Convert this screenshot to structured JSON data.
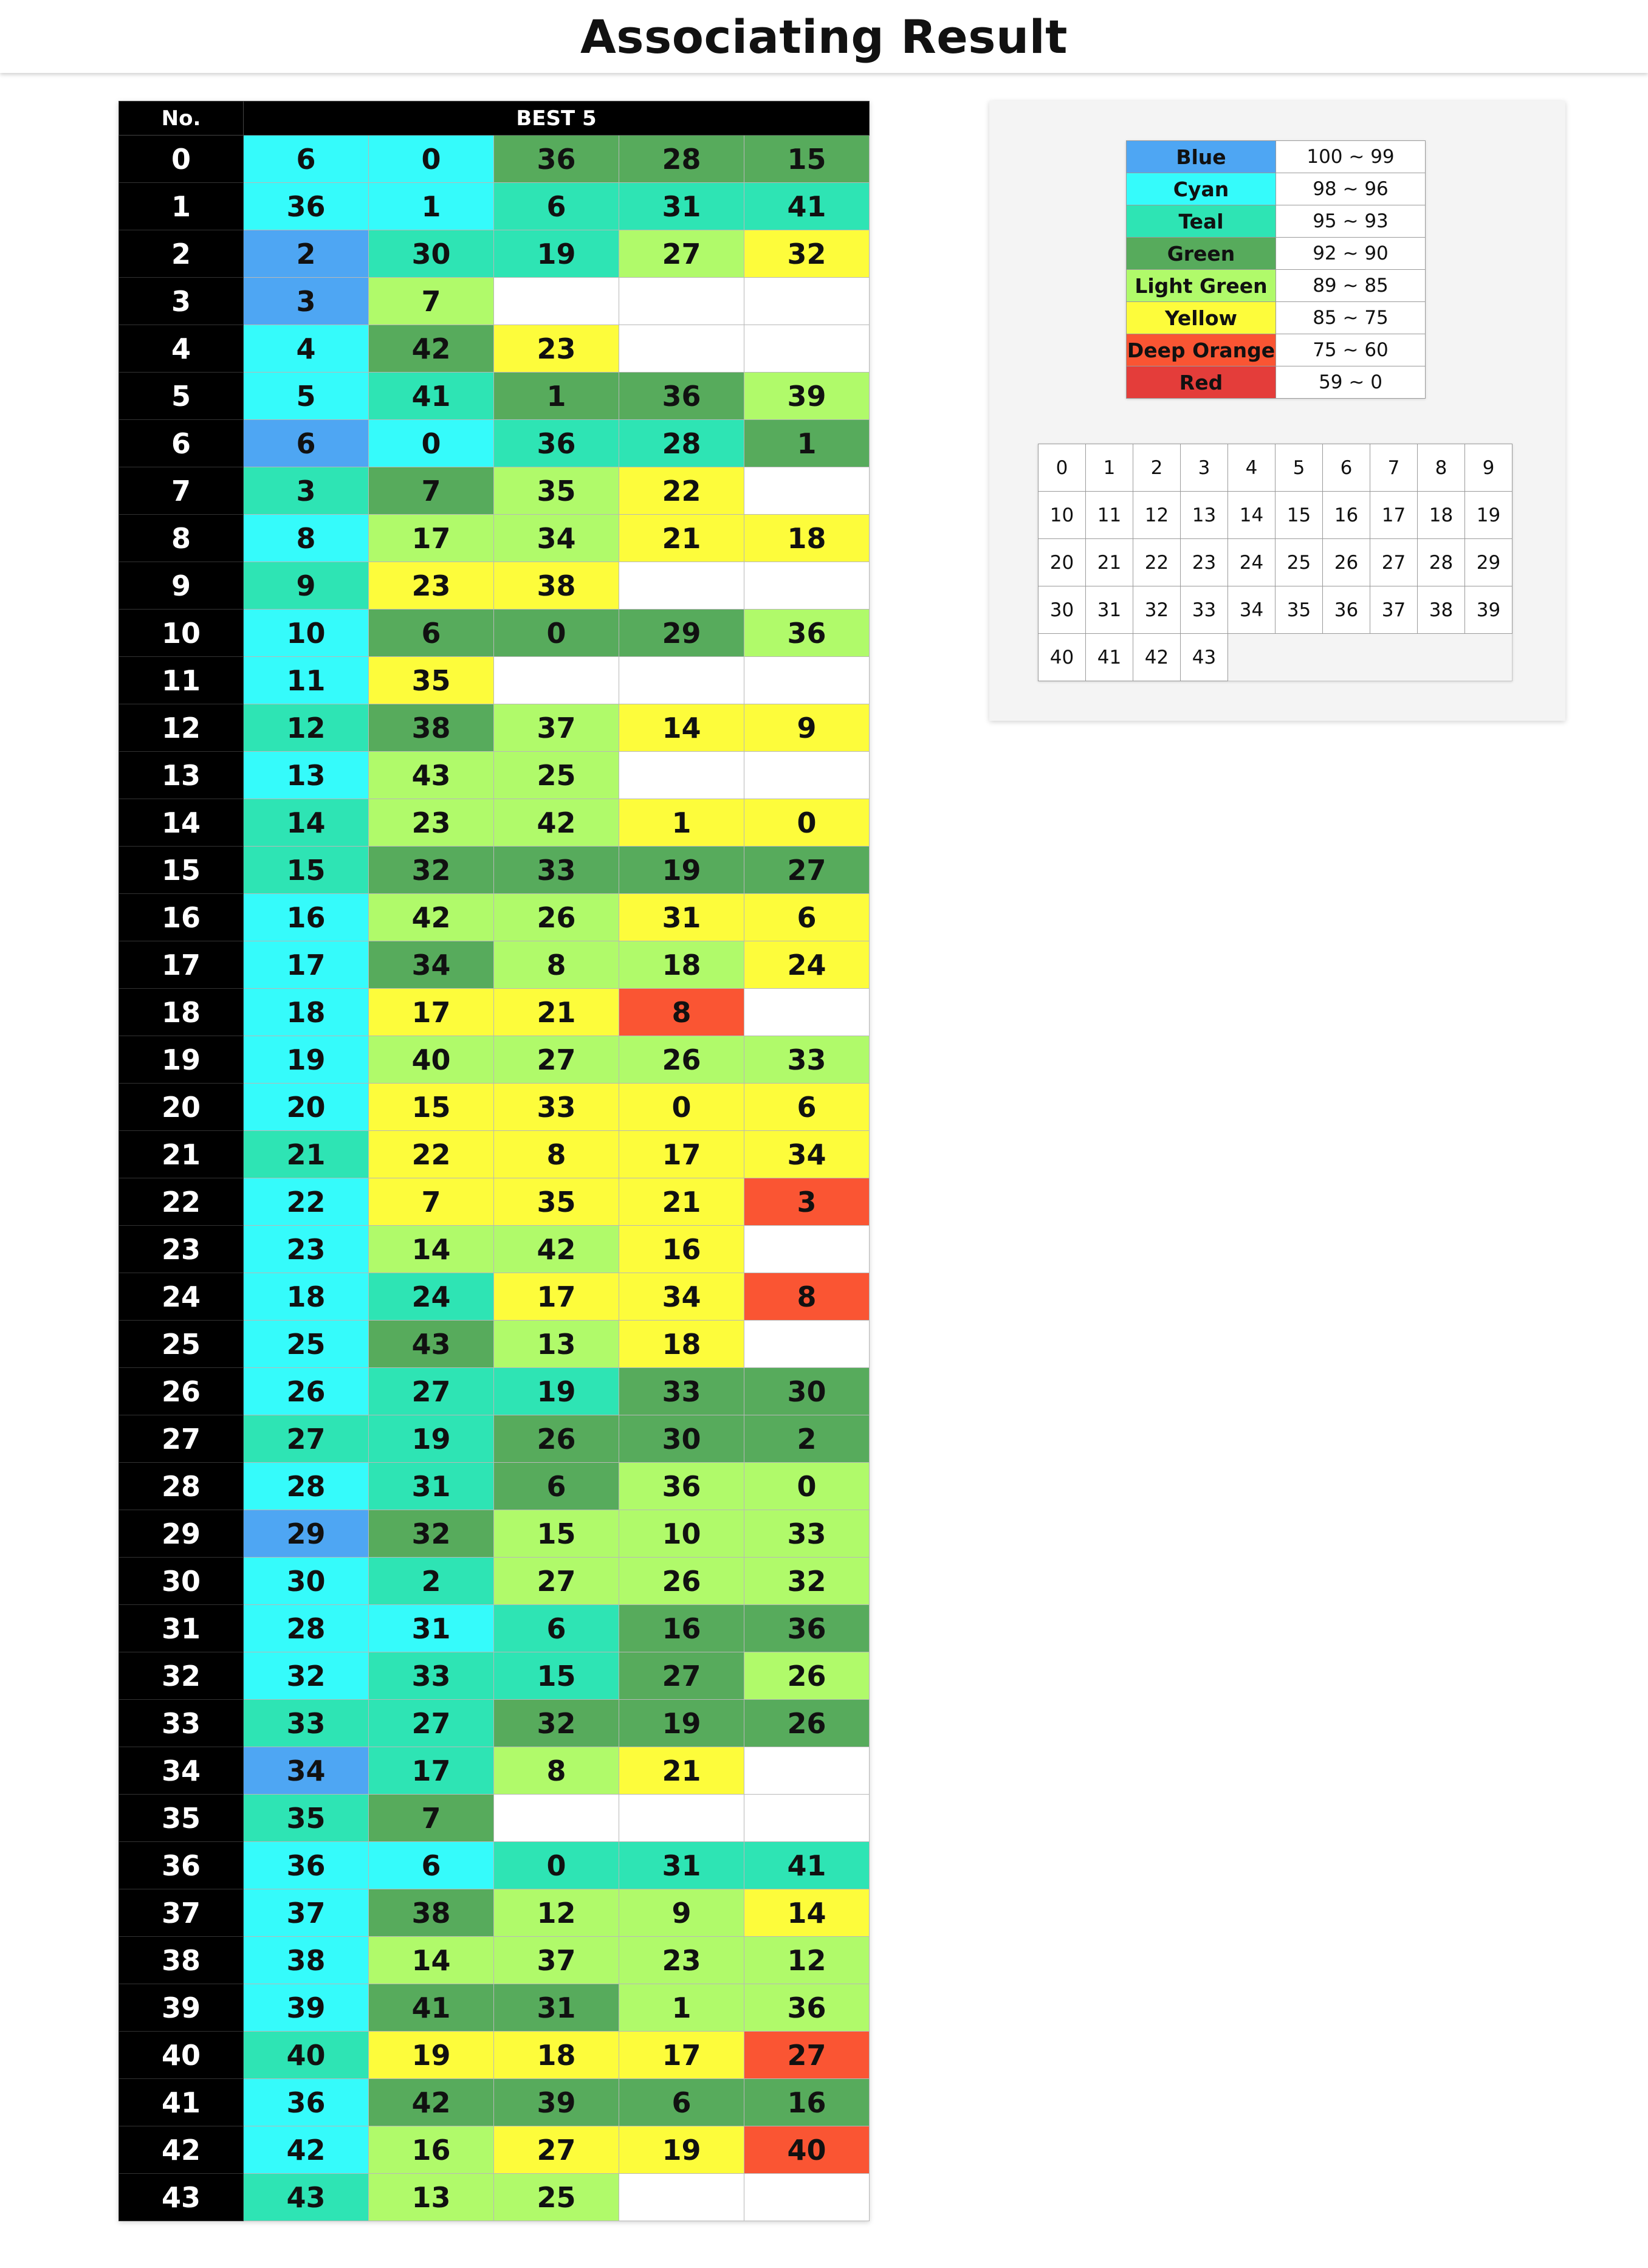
{
  "title": "Associating Result",
  "table_header": {
    "no_label": "No.",
    "best_label": "BEST 5"
  },
  "palette": {
    "blue": "#4ea6f3",
    "cyan": "#35fbfb",
    "teal": "#2ee4b4",
    "green": "#57ab5c",
    "lightgreen": "#b0fa6a",
    "yellow": "#fdfc3b",
    "deeporange": "#fa5533",
    "red": "#e43d3a"
  },
  "rows": [
    {
      "no": "0",
      "cells": [
        {
          "v": "6",
          "c": "cyan"
        },
        {
          "v": "0",
          "c": "cyan"
        },
        {
          "v": "36",
          "c": "green"
        },
        {
          "v": "28",
          "c": "green"
        },
        {
          "v": "15",
          "c": "green"
        }
      ]
    },
    {
      "no": "1",
      "cells": [
        {
          "v": "36",
          "c": "cyan"
        },
        {
          "v": "1",
          "c": "cyan"
        },
        {
          "v": "6",
          "c": "teal"
        },
        {
          "v": "31",
          "c": "teal"
        },
        {
          "v": "41",
          "c": "teal"
        }
      ]
    },
    {
      "no": "2",
      "cells": [
        {
          "v": "2",
          "c": "blue"
        },
        {
          "v": "30",
          "c": "teal"
        },
        {
          "v": "19",
          "c": "teal"
        },
        {
          "v": "27",
          "c": "lightgreen"
        },
        {
          "v": "32",
          "c": "yellow"
        }
      ]
    },
    {
      "no": "3",
      "cells": [
        {
          "v": "3",
          "c": "blue"
        },
        {
          "v": "7",
          "c": "lightgreen"
        }
      ]
    },
    {
      "no": "4",
      "cells": [
        {
          "v": "4",
          "c": "cyan"
        },
        {
          "v": "42",
          "c": "green"
        },
        {
          "v": "23",
          "c": "yellow"
        }
      ]
    },
    {
      "no": "5",
      "cells": [
        {
          "v": "5",
          "c": "cyan"
        },
        {
          "v": "41",
          "c": "teal"
        },
        {
          "v": "1",
          "c": "green"
        },
        {
          "v": "36",
          "c": "green"
        },
        {
          "v": "39",
          "c": "lightgreen"
        }
      ]
    },
    {
      "no": "6",
      "cells": [
        {
          "v": "6",
          "c": "blue"
        },
        {
          "v": "0",
          "c": "cyan"
        },
        {
          "v": "36",
          "c": "teal"
        },
        {
          "v": "28",
          "c": "teal"
        },
        {
          "v": "1",
          "c": "green"
        }
      ]
    },
    {
      "no": "7",
      "cells": [
        {
          "v": "3",
          "c": "teal"
        },
        {
          "v": "7",
          "c": "green"
        },
        {
          "v": "35",
          "c": "lightgreen"
        },
        {
          "v": "22",
          "c": "yellow"
        }
      ]
    },
    {
      "no": "8",
      "cells": [
        {
          "v": "8",
          "c": "cyan"
        },
        {
          "v": "17",
          "c": "lightgreen"
        },
        {
          "v": "34",
          "c": "lightgreen"
        },
        {
          "v": "21",
          "c": "yellow"
        },
        {
          "v": "18",
          "c": "yellow"
        }
      ]
    },
    {
      "no": "9",
      "cells": [
        {
          "v": "9",
          "c": "teal"
        },
        {
          "v": "23",
          "c": "yellow"
        },
        {
          "v": "38",
          "c": "yellow"
        }
      ]
    },
    {
      "no": "10",
      "cells": [
        {
          "v": "10",
          "c": "cyan"
        },
        {
          "v": "6",
          "c": "green"
        },
        {
          "v": "0",
          "c": "green"
        },
        {
          "v": "29",
          "c": "green"
        },
        {
          "v": "36",
          "c": "lightgreen"
        }
      ]
    },
    {
      "no": "11",
      "cells": [
        {
          "v": "11",
          "c": "cyan"
        },
        {
          "v": "35",
          "c": "yellow"
        }
      ]
    },
    {
      "no": "12",
      "cells": [
        {
          "v": "12",
          "c": "teal"
        },
        {
          "v": "38",
          "c": "green"
        },
        {
          "v": "37",
          "c": "lightgreen"
        },
        {
          "v": "14",
          "c": "yellow"
        },
        {
          "v": "9",
          "c": "yellow"
        }
      ]
    },
    {
      "no": "13",
      "cells": [
        {
          "v": "13",
          "c": "cyan"
        },
        {
          "v": "43",
          "c": "lightgreen"
        },
        {
          "v": "25",
          "c": "lightgreen"
        }
      ]
    },
    {
      "no": "14",
      "cells": [
        {
          "v": "14",
          "c": "teal"
        },
        {
          "v": "23",
          "c": "lightgreen"
        },
        {
          "v": "42",
          "c": "lightgreen"
        },
        {
          "v": "1",
          "c": "yellow"
        },
        {
          "v": "0",
          "c": "yellow"
        }
      ]
    },
    {
      "no": "15",
      "cells": [
        {
          "v": "15",
          "c": "teal"
        },
        {
          "v": "32",
          "c": "green"
        },
        {
          "v": "33",
          "c": "green"
        },
        {
          "v": "19",
          "c": "green"
        },
        {
          "v": "27",
          "c": "green"
        }
      ]
    },
    {
      "no": "16",
      "cells": [
        {
          "v": "16",
          "c": "cyan"
        },
        {
          "v": "42",
          "c": "lightgreen"
        },
        {
          "v": "26",
          "c": "lightgreen"
        },
        {
          "v": "31",
          "c": "yellow"
        },
        {
          "v": "6",
          "c": "yellow"
        }
      ]
    },
    {
      "no": "17",
      "cells": [
        {
          "v": "17",
          "c": "cyan"
        },
        {
          "v": "34",
          "c": "green"
        },
        {
          "v": "8",
          "c": "lightgreen"
        },
        {
          "v": "18",
          "c": "lightgreen"
        },
        {
          "v": "24",
          "c": "yellow"
        }
      ]
    },
    {
      "no": "18",
      "cells": [
        {
          "v": "18",
          "c": "cyan"
        },
        {
          "v": "17",
          "c": "yellow"
        },
        {
          "v": "21",
          "c": "yellow"
        },
        {
          "v": "8",
          "c": "deeporange"
        }
      ]
    },
    {
      "no": "19",
      "cells": [
        {
          "v": "19",
          "c": "cyan"
        },
        {
          "v": "40",
          "c": "lightgreen"
        },
        {
          "v": "27",
          "c": "lightgreen"
        },
        {
          "v": "26",
          "c": "lightgreen"
        },
        {
          "v": "33",
          "c": "lightgreen"
        }
      ]
    },
    {
      "no": "20",
      "cells": [
        {
          "v": "20",
          "c": "cyan"
        },
        {
          "v": "15",
          "c": "yellow"
        },
        {
          "v": "33",
          "c": "yellow"
        },
        {
          "v": "0",
          "c": "yellow"
        },
        {
          "v": "6",
          "c": "yellow"
        }
      ]
    },
    {
      "no": "21",
      "cells": [
        {
          "v": "21",
          "c": "teal"
        },
        {
          "v": "22",
          "c": "yellow"
        },
        {
          "v": "8",
          "c": "yellow"
        },
        {
          "v": "17",
          "c": "yellow"
        },
        {
          "v": "34",
          "c": "yellow"
        }
      ]
    },
    {
      "no": "22",
      "cells": [
        {
          "v": "22",
          "c": "cyan"
        },
        {
          "v": "7",
          "c": "yellow"
        },
        {
          "v": "35",
          "c": "yellow"
        },
        {
          "v": "21",
          "c": "yellow"
        },
        {
          "v": "3",
          "c": "deeporange"
        }
      ]
    },
    {
      "no": "23",
      "cells": [
        {
          "v": "23",
          "c": "cyan"
        },
        {
          "v": "14",
          "c": "lightgreen"
        },
        {
          "v": "42",
          "c": "lightgreen"
        },
        {
          "v": "16",
          "c": "yellow"
        }
      ]
    },
    {
      "no": "24",
      "cells": [
        {
          "v": "18",
          "c": "cyan"
        },
        {
          "v": "24",
          "c": "teal"
        },
        {
          "v": "17",
          "c": "yellow"
        },
        {
          "v": "34",
          "c": "yellow"
        },
        {
          "v": "8",
          "c": "deeporange"
        }
      ]
    },
    {
      "no": "25",
      "cells": [
        {
          "v": "25",
          "c": "cyan"
        },
        {
          "v": "43",
          "c": "green"
        },
        {
          "v": "13",
          "c": "lightgreen"
        },
        {
          "v": "18",
          "c": "yellow"
        }
      ]
    },
    {
      "no": "26",
      "cells": [
        {
          "v": "26",
          "c": "cyan"
        },
        {
          "v": "27",
          "c": "teal"
        },
        {
          "v": "19",
          "c": "teal"
        },
        {
          "v": "33",
          "c": "green"
        },
        {
          "v": "30",
          "c": "green"
        }
      ]
    },
    {
      "no": "27",
      "cells": [
        {
          "v": "27",
          "c": "teal"
        },
        {
          "v": "19",
          "c": "teal"
        },
        {
          "v": "26",
          "c": "green"
        },
        {
          "v": "30",
          "c": "green"
        },
        {
          "v": "2",
          "c": "green"
        }
      ]
    },
    {
      "no": "28",
      "cells": [
        {
          "v": "28",
          "c": "cyan"
        },
        {
          "v": "31",
          "c": "teal"
        },
        {
          "v": "6",
          "c": "green"
        },
        {
          "v": "36",
          "c": "lightgreen"
        },
        {
          "v": "0",
          "c": "lightgreen"
        }
      ]
    },
    {
      "no": "29",
      "cells": [
        {
          "v": "29",
          "c": "blue"
        },
        {
          "v": "32",
          "c": "green"
        },
        {
          "v": "15",
          "c": "lightgreen"
        },
        {
          "v": "10",
          "c": "lightgreen"
        },
        {
          "v": "33",
          "c": "lightgreen"
        }
      ]
    },
    {
      "no": "30",
      "cells": [
        {
          "v": "30",
          "c": "cyan"
        },
        {
          "v": "2",
          "c": "teal"
        },
        {
          "v": "27",
          "c": "lightgreen"
        },
        {
          "v": "26",
          "c": "lightgreen"
        },
        {
          "v": "32",
          "c": "lightgreen"
        }
      ]
    },
    {
      "no": "31",
      "cells": [
        {
          "v": "28",
          "c": "cyan"
        },
        {
          "v": "31",
          "c": "cyan"
        },
        {
          "v": "6",
          "c": "teal"
        },
        {
          "v": "16",
          "c": "green"
        },
        {
          "v": "36",
          "c": "green"
        }
      ]
    },
    {
      "no": "32",
      "cells": [
        {
          "v": "32",
          "c": "cyan"
        },
        {
          "v": "33",
          "c": "teal"
        },
        {
          "v": "15",
          "c": "teal"
        },
        {
          "v": "27",
          "c": "green"
        },
        {
          "v": "26",
          "c": "lightgreen"
        }
      ]
    },
    {
      "no": "33",
      "cells": [
        {
          "v": "33",
          "c": "teal"
        },
        {
          "v": "27",
          "c": "teal"
        },
        {
          "v": "32",
          "c": "green"
        },
        {
          "v": "19",
          "c": "green"
        },
        {
          "v": "26",
          "c": "green"
        }
      ]
    },
    {
      "no": "34",
      "cells": [
        {
          "v": "34",
          "c": "blue"
        },
        {
          "v": "17",
          "c": "teal"
        },
        {
          "v": "8",
          "c": "lightgreen"
        },
        {
          "v": "21",
          "c": "yellow"
        }
      ]
    },
    {
      "no": "35",
      "cells": [
        {
          "v": "35",
          "c": "teal"
        },
        {
          "v": "7",
          "c": "green"
        }
      ]
    },
    {
      "no": "36",
      "cells": [
        {
          "v": "36",
          "c": "cyan"
        },
        {
          "v": "6",
          "c": "cyan"
        },
        {
          "v": "0",
          "c": "teal"
        },
        {
          "v": "31",
          "c": "teal"
        },
        {
          "v": "41",
          "c": "teal"
        }
      ]
    },
    {
      "no": "37",
      "cells": [
        {
          "v": "37",
          "c": "cyan"
        },
        {
          "v": "38",
          "c": "green"
        },
        {
          "v": "12",
          "c": "lightgreen"
        },
        {
          "v": "9",
          "c": "lightgreen"
        },
        {
          "v": "14",
          "c": "yellow"
        }
      ]
    },
    {
      "no": "38",
      "cells": [
        {
          "v": "38",
          "c": "cyan"
        },
        {
          "v": "14",
          "c": "lightgreen"
        },
        {
          "v": "37",
          "c": "lightgreen"
        },
        {
          "v": "23",
          "c": "lightgreen"
        },
        {
          "v": "12",
          "c": "lightgreen"
        }
      ]
    },
    {
      "no": "39",
      "cells": [
        {
          "v": "39",
          "c": "cyan"
        },
        {
          "v": "41",
          "c": "green"
        },
        {
          "v": "31",
          "c": "green"
        },
        {
          "v": "1",
          "c": "lightgreen"
        },
        {
          "v": "36",
          "c": "lightgreen"
        }
      ]
    },
    {
      "no": "40",
      "cells": [
        {
          "v": "40",
          "c": "teal"
        },
        {
          "v": "19",
          "c": "yellow"
        },
        {
          "v": "18",
          "c": "yellow"
        },
        {
          "v": "17",
          "c": "yellow"
        },
        {
          "v": "27",
          "c": "deeporange"
        }
      ]
    },
    {
      "no": "41",
      "cells": [
        {
          "v": "36",
          "c": "cyan"
        },
        {
          "v": "42",
          "c": "green"
        },
        {
          "v": "39",
          "c": "green"
        },
        {
          "v": "6",
          "c": "green"
        },
        {
          "v": "16",
          "c": "green"
        }
      ]
    },
    {
      "no": "42",
      "cells": [
        {
          "v": "42",
          "c": "cyan"
        },
        {
          "v": "16",
          "c": "lightgreen"
        },
        {
          "v": "27",
          "c": "yellow"
        },
        {
          "v": "19",
          "c": "yellow"
        },
        {
          "v": "40",
          "c": "deeporange"
        }
      ]
    },
    {
      "no": "43",
      "cells": [
        {
          "v": "43",
          "c": "teal"
        },
        {
          "v": "13",
          "c": "lightgreen"
        },
        {
          "v": "25",
          "c": "lightgreen"
        }
      ]
    }
  ],
  "legend": [
    {
      "name": "Blue",
      "range": "100 ~ 99",
      "c": "blue"
    },
    {
      "name": "Cyan",
      "range": "98 ~ 96",
      "c": "cyan"
    },
    {
      "name": "Teal",
      "range": "95 ~ 93",
      "c": "teal"
    },
    {
      "name": "Green",
      "range": "92 ~ 90",
      "c": "green"
    },
    {
      "name": "Light Green",
      "range": "89 ~ 85",
      "c": "lightgreen"
    },
    {
      "name": "Yellow",
      "range": "85 ~ 75",
      "c": "yellow"
    },
    {
      "name": "Deep Orange",
      "range": "75 ~ 60",
      "c": "deeporange"
    },
    {
      "name": "Red",
      "range": "59 ~ 0",
      "c": "red"
    }
  ],
  "index_grid": [
    [
      "0",
      "1",
      "2",
      "3",
      "4",
      "5",
      "6",
      "7",
      "8",
      "9"
    ],
    [
      "10",
      "11",
      "12",
      "13",
      "14",
      "15",
      "16",
      "17",
      "18",
      "19"
    ],
    [
      "20",
      "21",
      "22",
      "23",
      "24",
      "25",
      "26",
      "27",
      "28",
      "29"
    ],
    [
      "30",
      "31",
      "32",
      "33",
      "34",
      "35",
      "36",
      "37",
      "38",
      "39"
    ],
    [
      "40",
      "41",
      "42",
      "43"
    ]
  ]
}
